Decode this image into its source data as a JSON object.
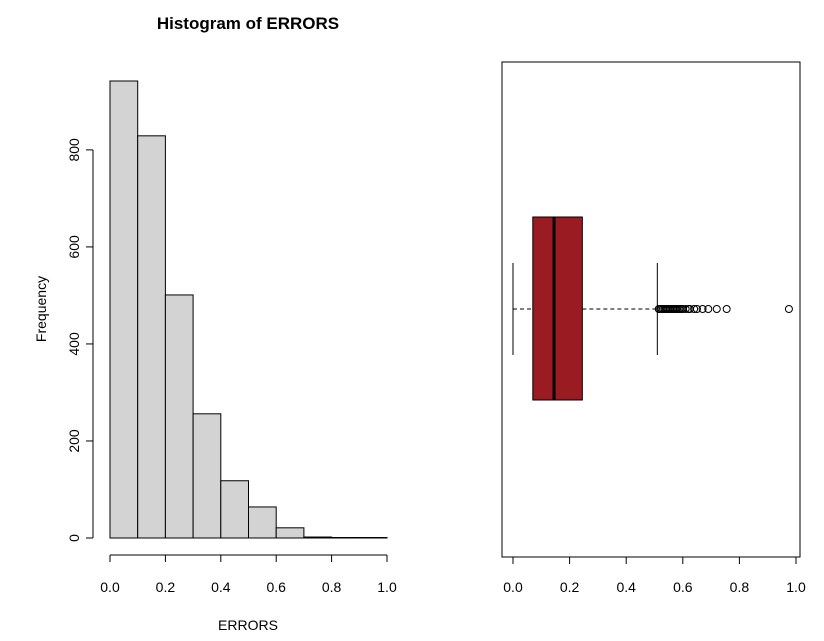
{
  "chart_data": [
    {
      "type": "bar",
      "subtype": "histogram",
      "title": "Histogram of ERRORS",
      "xlabel": "ERRORS",
      "ylabel": "Frequency",
      "bins": [
        {
          "x0": 0.0,
          "x1": 0.1,
          "value": 942
        },
        {
          "x0": 0.1,
          "x1": 0.2,
          "value": 829
        },
        {
          "x0": 0.2,
          "x1": 0.3,
          "value": 501
        },
        {
          "x0": 0.3,
          "x1": 0.4,
          "value": 256
        },
        {
          "x0": 0.4,
          "x1": 0.5,
          "value": 118
        },
        {
          "x0": 0.5,
          "x1": 0.6,
          "value": 64
        },
        {
          "x0": 0.6,
          "x1": 0.7,
          "value": 21
        },
        {
          "x0": 0.7,
          "x1": 0.8,
          "value": 2
        },
        {
          "x0": 0.8,
          "x1": 0.9,
          "value": 1
        },
        {
          "x0": 0.9,
          "x1": 1.0,
          "value": 1
        }
      ],
      "xlim": [
        0,
        1
      ],
      "ylim": [
        0,
        942
      ],
      "xticks": [
        "0.0",
        "0.2",
        "0.4",
        "0.6",
        "0.8",
        "1.0"
      ],
      "yticks": [
        "0",
        "200",
        "400",
        "600",
        "800"
      ],
      "bar_color": "#d3d3d3",
      "grid": false
    },
    {
      "type": "boxplot",
      "orientation": "horizontal",
      "title": "",
      "xlabel": "",
      "stats": {
        "min": 0.0,
        "q1": 0.07,
        "median": 0.145,
        "q3": 0.245,
        "max": 0.51
      },
      "outliers": [
        0.515,
        0.52,
        0.525,
        0.53,
        0.535,
        0.54,
        0.545,
        0.55,
        0.555,
        0.56,
        0.565,
        0.57,
        0.575,
        0.58,
        0.585,
        0.59,
        0.595,
        0.6,
        0.61,
        0.62,
        0.625,
        0.64,
        0.65,
        0.67,
        0.69,
        0.72,
        0.755,
        0.975
      ],
      "xlim": [
        0,
        1
      ],
      "xticks": [
        "0.0",
        "0.2",
        "0.4",
        "0.6",
        "0.8",
        "1.0"
      ],
      "box_color": "#9b1b22",
      "grid": false
    }
  ]
}
